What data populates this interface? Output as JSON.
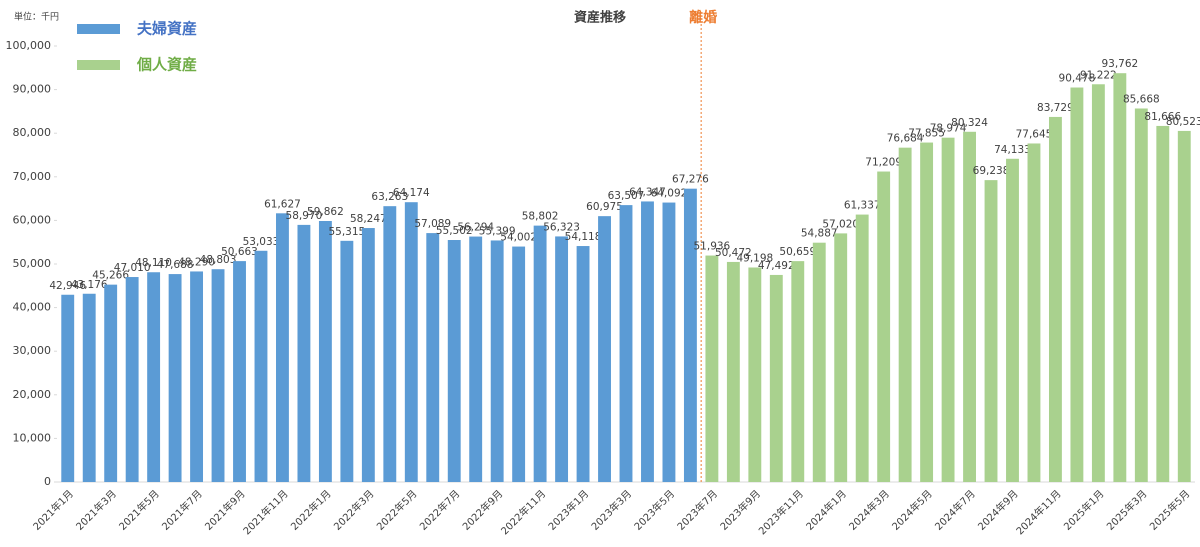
{
  "chart_data": {
    "type": "bar",
    "title": "資産推移",
    "annotation": "離婚",
    "unit_label": "単位：千円",
    "categories": [
      "2021年1月",
      null,
      "2021年3月",
      null,
      "2021年5月",
      null,
      "2021年7月",
      null,
      "2021年9月",
      null,
      "2021年11月",
      null,
      "2022年1月",
      null,
      "2022年3月",
      null,
      "2022年5月",
      null,
      "2022年7月",
      null,
      "2022年9月",
      null,
      "2022年11月",
      null,
      "2023年1月",
      null,
      "2023年3月",
      null,
      "2023年5月",
      null,
      "2023年7月",
      null,
      "2023年9月",
      null,
      "2023年11月",
      null,
      "2024年1月",
      null,
      "2024年3月",
      null,
      "2024年5月",
      null,
      "2024年7月",
      null,
      "2024年9月",
      null,
      "2024年11月",
      null,
      "2025年1月",
      null,
      "2025年3月",
      null,
      "2025年5月"
    ],
    "series": [
      {
        "name": "夫婦資産",
        "color": "#5b9bd5",
        "legend_color": "#4472c4",
        "values": [
          42946,
          43176,
          45266,
          47010,
          48110,
          47688,
          48290,
          48803,
          50663,
          53033,
          61627,
          58970,
          59862,
          55315,
          58247,
          63263,
          64174,
          57089,
          55502,
          56294,
          55399,
          54002,
          58802,
          56323,
          54118,
          60975,
          63507,
          64347,
          64092,
          67276,
          null,
          null,
          null,
          null,
          null,
          null,
          null,
          null,
          null,
          null,
          null,
          null,
          null,
          null,
          null,
          null,
          null,
          null,
          null,
          null,
          null,
          null,
          null
        ],
        "value_labels": [
          "42,946",
          "43,176",
          "45,266",
          "47,010",
          "48,110",
          "47,688",
          "48,290",
          "48,803",
          "50,663",
          "53,033",
          "61,627",
          "58,970",
          "59,862",
          "55,315",
          "58,247",
          "63,263",
          "64,174",
          "57,089",
          "55,502",
          "56,294",
          "55,399",
          "54,002",
          "58,802",
          "56,323",
          "54,118",
          "60,975",
          "63,507",
          "64,347",
          "64,092",
          "67,276",
          null,
          null,
          null,
          null,
          null,
          null,
          null,
          null,
          null,
          null,
          null,
          null,
          null,
          null,
          null,
          null,
          null,
          null,
          null,
          null,
          null,
          null,
          null
        ]
      },
      {
        "name": "個人資産",
        "color": "#a9d18e",
        "legend_color": "#70ad47",
        "values": [
          null,
          null,
          null,
          null,
          null,
          null,
          null,
          null,
          null,
          null,
          null,
          null,
          null,
          null,
          null,
          null,
          null,
          null,
          null,
          null,
          null,
          null,
          null,
          null,
          null,
          null,
          null,
          null,
          null,
          null,
          51936,
          50472,
          49198,
          47492,
          50659,
          54887,
          57020,
          61337,
          71209,
          76684,
          77855,
          78974,
          80324,
          69238,
          74133,
          77645,
          83729,
          90478,
          91222,
          93762,
          85668,
          81666,
          80523
        ],
        "value_labels": [
          null,
          null,
          null,
          null,
          null,
          null,
          null,
          null,
          null,
          null,
          null,
          null,
          null,
          null,
          null,
          null,
          null,
          null,
          null,
          null,
          null,
          null,
          null,
          null,
          null,
          null,
          null,
          null,
          null,
          null,
          "51,936",
          "50,472",
          "49,198",
          "47,492",
          "50,659",
          "54,887",
          "57,020",
          "61,337",
          "71,209",
          "76,684",
          "77,855",
          "78,974",
          "80,324",
          "69,238",
          "74,133",
          "77,645",
          "83,729",
          "90,478",
          "91,222",
          "93,762",
          "85,668",
          "81,666",
          "80,523"
        ]
      }
    ],
    "ylim": [
      0,
      100000
    ],
    "yticks": [
      0,
      {
        "value": 10000,
        "label": "10,000"
      },
      {
        "value": 20000,
        "label": "20,000"
      },
      {
        "value": 30000,
        "label": "30,000"
      },
      {
        "value": 40000,
        "label": "40,000"
      },
      {
        "value": 50000,
        "label": "50,000"
      },
      {
        "value": 60000,
        "label": "60,000"
      },
      {
        "value": 70000,
        "label": "70,000"
      },
      {
        "value": 80000,
        "label": "80,000"
      },
      {
        "value": 90000,
        "label": "90,000"
      },
      {
        "value": 100000,
        "label": "100,000"
      }
    ],
    "grid": false,
    "legend": "top-left"
  }
}
